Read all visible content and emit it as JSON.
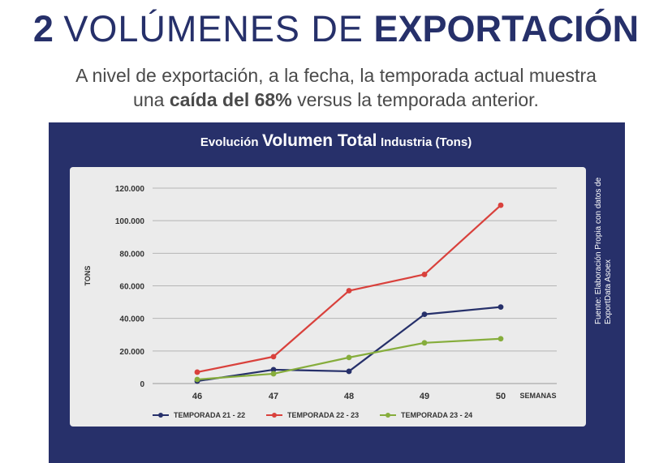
{
  "header": {
    "number": "2",
    "title_light": "VOLÚMENES DE",
    "title_bold": "EXPORTACIÓN",
    "subtitle_line1": "A nivel de exportación, a la fecha, la temporada actual muestra",
    "subtitle_pre": "una",
    "subtitle_emphasis": "caída del 68%",
    "subtitle_post": "versus la temporada anterior."
  },
  "panel": {
    "title_part1": "Evolución",
    "title_part2": "Volumen Total",
    "title_part3": "Industria (Tons)",
    "source_line1": "Fuente: Elaboración Propia con datos de",
    "source_line2": "ExportData Asoex",
    "background": "#27306a"
  },
  "chart_data": {
    "type": "line",
    "ylabel": "TONS",
    "xlabel": "SEMANAS",
    "x": [
      "46",
      "47",
      "48",
      "49",
      "50"
    ],
    "ylim": [
      0,
      120000
    ],
    "yticks": [
      0,
      20000,
      40000,
      60000,
      80000,
      100000,
      120000
    ],
    "ytick_labels": [
      "0",
      "20.000",
      "40.000",
      "60.000",
      "80.000",
      "100.000",
      "120.000"
    ],
    "grid": true,
    "legend_position": "bottom",
    "series": [
      {
        "name": "TEMPORADA 21 - 22",
        "color": "#26306a",
        "values": [
          1500,
          8500,
          7500,
          42500,
          47000
        ]
      },
      {
        "name": "TEMPORADA 22 - 23",
        "color": "#d9413c",
        "values": [
          7000,
          16500,
          57000,
          67000,
          109500
        ]
      },
      {
        "name": "TEMPORADA 23 - 24",
        "color": "#86ad3c",
        "values": [
          2500,
          6000,
          16000,
          25000,
          27500
        ]
      }
    ]
  }
}
